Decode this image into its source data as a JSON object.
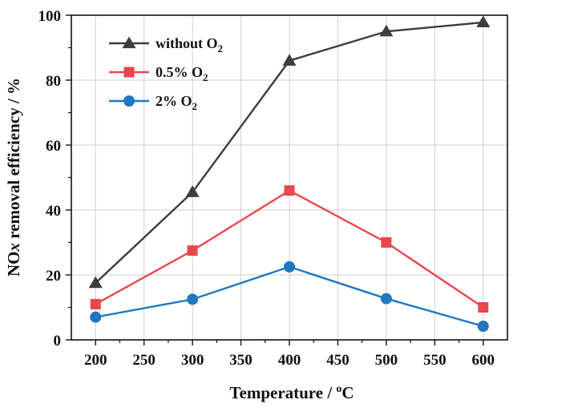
{
  "chart_data": {
    "type": "line",
    "title": "",
    "xlabel": "Temperature / oC",
    "xlabel_parts": {
      "main": "Temperature / ",
      "sup": "o",
      "unit": "C"
    },
    "ylabel": "NOx removal efficiency / %",
    "ylabel_parts": {
      "pre": "NO",
      "italic": "x",
      "post": " removal efficiency / %"
    },
    "xlim": [
      175,
      625
    ],
    "ylim": [
      0,
      100
    ],
    "x_ticks": [
      200,
      250,
      300,
      350,
      400,
      450,
      500,
      550,
      600
    ],
    "y_ticks": [
      0,
      20,
      40,
      60,
      80,
      100
    ],
    "grid": true,
    "legend_position": "top-left",
    "x": [
      200,
      300,
      400,
      500,
      600
    ],
    "series": [
      {
        "name": "without O2",
        "label_main": "without O",
        "label_sub": "2",
        "marker": "triangle",
        "color": "#3d3d3d",
        "values": [
          17.5,
          45.5,
          86.0,
          95.0,
          97.8
        ]
      },
      {
        "name": "0.5% O2",
        "label_main": "0.5% O",
        "label_sub": "2",
        "marker": "square",
        "color": "#e8474e",
        "values": [
          11.0,
          27.5,
          46.0,
          30.0,
          10.0
        ]
      },
      {
        "name": "2% O2",
        "label_main": "2% O",
        "label_sub": "2",
        "marker": "circle",
        "color": "#1f78c0",
        "values": [
          7.0,
          12.5,
          22.5,
          12.7,
          4.2
        ]
      }
    ]
  }
}
